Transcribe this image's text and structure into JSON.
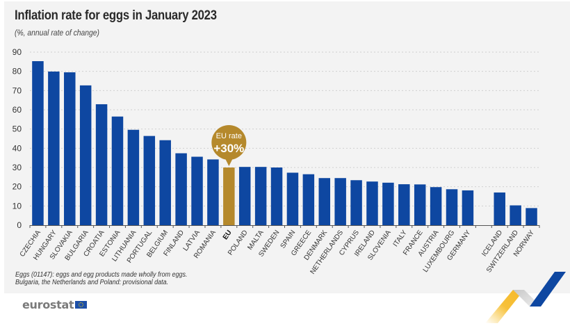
{
  "header": {
    "title": "Inflation rate for eggs in January 2023",
    "subtitle": "(%, annual rate of change)"
  },
  "chart_data": {
    "type": "bar",
    "title": "Inflation rate for eggs in January 2023",
    "subtitle": "(%, annual rate of change)",
    "xlabel": "",
    "ylabel": "%",
    "ylim": [
      0,
      90
    ],
    "yticks": [
      0,
      10,
      20,
      30,
      40,
      50,
      60,
      70,
      80,
      90
    ],
    "grid": true,
    "categories": [
      "CZECHIA",
      "HUNGARY",
      "SLOVAKIA",
      "BULGARIA",
      "CROATIA",
      "ESTONIA",
      "LITHUANIA",
      "PORTUGAL",
      "BELGIUM",
      "FINLAND",
      "LATVIA",
      "ROMANIA",
      "EU",
      "POLAND",
      "MALTA",
      "SWEDEN",
      "SPAIN",
      "GREECE",
      "DENMARK",
      "NETHERLANDS",
      "CYPRUS",
      "IRELAND",
      "SLOVENIA",
      "ITALY",
      "FRANCE",
      "AUSTRIA",
      "LUXEMBOURG",
      "GERMANY",
      "",
      "ICELAND",
      "SWITZERLAND",
      "NORWAY"
    ],
    "values": [
      85.3,
      79.9,
      79.5,
      72.7,
      62.9,
      56.5,
      49.6,
      46.4,
      44.2,
      37.4,
      35.6,
      34.2,
      30.0,
      30.3,
      30.3,
      30.0,
      27.3,
      26.5,
      24.5,
      24.5,
      23.4,
      22.7,
      22.1,
      21.3,
      21.2,
      19.8,
      18.7,
      18.1,
      null,
      17.0,
      10.3,
      8.9
    ],
    "highlight": {
      "category": "EU",
      "color": "#b5892c"
    },
    "bar_color": "#0e47a1",
    "annotation": {
      "line1": "EU rate",
      "line2": "+30%",
      "target": "EU",
      "color": "#b5892c"
    }
  },
  "footer": {
    "note_line1": "Eggs (01147): eggs and egg products made wholly from eggs.",
    "note_line2": "Bulgaria, the Netherlands and Poland: provisional data.",
    "logo_text": "eurostat"
  }
}
